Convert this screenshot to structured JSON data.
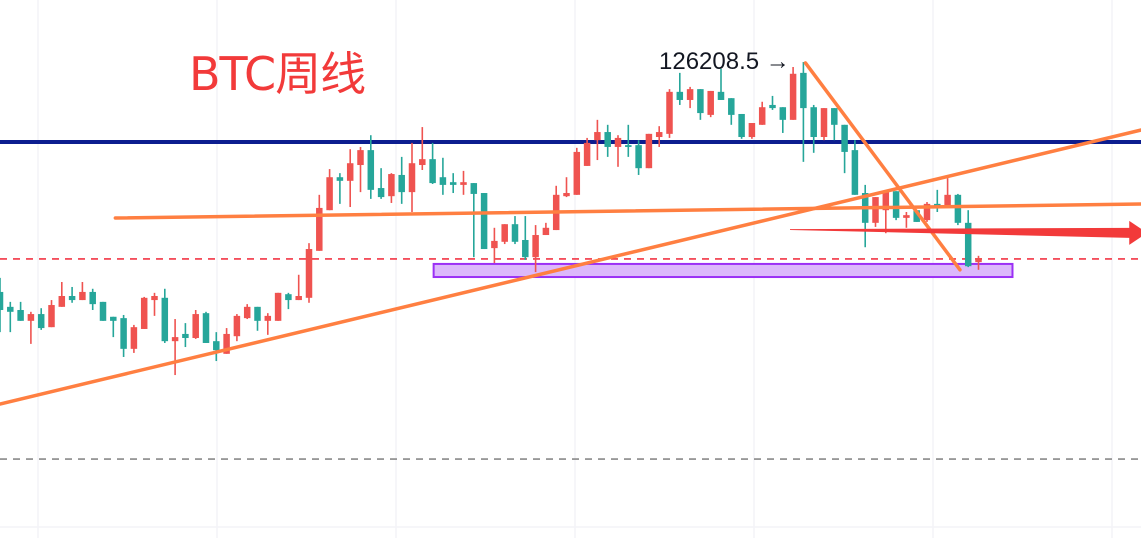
{
  "title": "BTC周线",
  "chart_data": {
    "type": "candlestick",
    "title": "BTC周线",
    "interval": "weekly",
    "symbol": "BTC",
    "colors": {
      "up": "#ef5350",
      "down": "#26a69a",
      "background": "#ffffff",
      "grid": "#f3f4f7"
    },
    "up_is_red": true,
    "grid": true,
    "ylim": [
      37500,
      140000
    ],
    "peak_annotation": {
      "text": "126208.5",
      "arrow": "→",
      "price": 126208.5,
      "candle_index": 78
    },
    "candles_ohlc": [
      [
        75300,
        78400,
        66400,
        71300
      ],
      [
        72000,
        73100,
        66400,
        70900
      ],
      [
        71300,
        73100,
        68900,
        68900
      ],
      [
        68900,
        70900,
        63800,
        70400
      ],
      [
        70400,
        71700,
        66900,
        67300
      ],
      [
        67500,
        73500,
        67500,
        72400
      ],
      [
        72000,
        77500,
        72000,
        74400
      ],
      [
        74400,
        76400,
        72900,
        73500
      ],
      [
        73500,
        77500,
        73500,
        75300
      ],
      [
        75300,
        76000,
        71300,
        72600
      ],
      [
        73100,
        73100,
        68900,
        68900
      ],
      [
        69800,
        69800,
        65300,
        68900
      ],
      [
        69500,
        70200,
        60900,
        62700
      ],
      [
        62700,
        68000,
        61800,
        67500
      ],
      [
        67100,
        74200,
        67100,
        74000
      ],
      [
        73500,
        75100,
        70000,
        74400
      ],
      [
        74000,
        76000,
        64000,
        64400
      ],
      [
        64400,
        69300,
        56900,
        65300
      ],
      [
        66000,
        68400,
        63100,
        65100
      ],
      [
        65100,
        71300,
        64900,
        70400
      ],
      [
        70600,
        70900,
        64000,
        64000
      ],
      [
        64400,
        66400,
        60000,
        62400
      ],
      [
        61600,
        67300,
        61600,
        66000
      ],
      [
        65500,
        70400,
        64400,
        70000
      ],
      [
        69500,
        72600,
        69300,
        72000
      ],
      [
        72000,
        72000,
        66700,
        68900
      ],
      [
        68900,
        70600,
        65800,
        70000
      ],
      [
        68900,
        75100,
        68900,
        75100
      ],
      [
        74800,
        75100,
        71500,
        73500
      ],
      [
        73500,
        79100,
        73500,
        74400
      ],
      [
        74000,
        86100,
        72900,
        84800
      ],
      [
        84400,
        96800,
        84400,
        93900
      ],
      [
        93400,
        102500,
        93400,
        100700
      ],
      [
        100700,
        101600,
        94800,
        99900
      ],
      [
        99900,
        106900,
        94100,
        103800
      ],
      [
        103400,
        107400,
        97400,
        106700
      ],
      [
        106700,
        110000,
        95900,
        97900
      ],
      [
        98300,
        102700,
        95900,
        96300
      ],
      [
        96500,
        101600,
        95000,
        101400
      ],
      [
        101200,
        105200,
        94800,
        97400
      ],
      [
        97400,
        108300,
        93000,
        103800
      ],
      [
        103400,
        111800,
        102300,
        104700
      ],
      [
        104700,
        108300,
        99200,
        99400
      ],
      [
        100700,
        105000,
        96800,
        99000
      ],
      [
        99600,
        101600,
        97200,
        99000
      ],
      [
        99000,
        102100,
        96800,
        99600
      ],
      [
        99400,
        99400,
        83000,
        97000
      ],
      [
        97200,
        97200,
        84800,
        84800
      ],
      [
        85000,
        89500,
        81700,
        86600
      ],
      [
        86400,
        90300,
        85900,
        90300
      ],
      [
        90300,
        92100,
        85900,
        86400
      ],
      [
        86800,
        92100,
        82400,
        83000
      ],
      [
        83000,
        90100,
        79700,
        87900
      ],
      [
        87900,
        90600,
        87900,
        89500
      ],
      [
        89000,
        98800,
        89000,
        96800
      ],
      [
        96500,
        100700,
        96300,
        97200
      ],
      [
        96800,
        107200,
        96800,
        106300
      ],
      [
        103200,
        109400,
        103200,
        108300
      ],
      [
        108900,
        113400,
        104500,
        110700
      ],
      [
        110700,
        112300,
        105200,
        107400
      ],
      [
        107400,
        110000,
        103000,
        109400
      ],
      [
        107800,
        112300,
        105200,
        107400
      ],
      [
        107800,
        108900,
        101200,
        102700
      ],
      [
        102700,
        110300,
        102700,
        110300
      ],
      [
        109600,
        112000,
        107400,
        110700
      ],
      [
        110300,
        120200,
        109400,
        119600
      ],
      [
        119600,
        123800,
        116700,
        117800
      ],
      [
        117800,
        120700,
        116000,
        120200
      ],
      [
        120200,
        120200,
        113400,
        114900
      ],
      [
        114500,
        119800,
        114000,
        119800
      ],
      [
        119600,
        124700,
        117800,
        117800
      ],
      [
        118200,
        118200,
        112300,
        114500
      ],
      [
        114700,
        114700,
        109200,
        109600
      ],
      [
        109600,
        112700,
        109200,
        112700
      ],
      [
        112300,
        117400,
        112300,
        116200
      ],
      [
        116700,
        118700,
        115600,
        116000
      ],
      [
        116200,
        116200,
        110500,
        113400
      ],
      [
        113400,
        125100,
        113400,
        123600
      ],
      [
        123800,
        126208.5,
        104100,
        116000
      ],
      [
        116200,
        116700,
        106100,
        109600
      ],
      [
        109600,
        116000,
        108900,
        116000
      ],
      [
        116000,
        116000,
        108900,
        112300
      ],
      [
        112300,
        112300,
        101600,
        106300
      ],
      [
        106700,
        108900,
        96800,
        96800
      ],
      [
        97200,
        99000,
        85200,
        90600
      ],
      [
        90600,
        96300,
        89700,
        96300
      ],
      [
        93400,
        97400,
        88300,
        97400
      ],
      [
        97600,
        97600,
        91200,
        91700
      ],
      [
        91700,
        93000,
        89500,
        92300
      ],
      [
        93400,
        93400,
        90800,
        90800
      ],
      [
        91200,
        95200,
        90800,
        94800
      ],
      [
        94800,
        97900,
        93000,
        94300
      ],
      [
        94500,
        100500,
        94500,
        96800
      ],
      [
        96800,
        97000,
        90100,
        90600
      ],
      [
        90600,
        93400,
        80800,
        81000
      ],
      [
        81900,
        83300,
        80200,
        82800
      ]
    ],
    "horizontal_lines": [
      {
        "name": "resistance",
        "price": 108500,
        "color": "#0c1d8f",
        "style": "solid"
      },
      {
        "name": "support-dashed",
        "price": 82600,
        "color": "#f23645",
        "style": "dashed"
      },
      {
        "name": "lower-dashed",
        "price": 38300,
        "color": "#8a8a8a",
        "style": "dashed"
      }
    ],
    "trend_lines": [
      {
        "name": "flat-trendline",
        "from": [
          11.2,
          91670
        ],
        "to": [
          110.8,
          94770
        ],
        "color": "#ff7f41"
      },
      {
        "name": "rising-trendline",
        "from": [
          0,
          50490
        ],
        "to": [
          110.8,
          111150
        ],
        "color": "#ff7f41"
      },
      {
        "name": "falling-trendline",
        "from": [
          78.2,
          126000
        ],
        "to": [
          93.2,
          80200
        ],
        "color": "#ff7f41"
      }
    ],
    "arrow": {
      "name": "projection-arrow",
      "from": [
        76.7,
        89200
      ],
      "to": [
        110.8,
        88350
      ],
      "color": "#f23a3a"
    },
    "zone": {
      "name": "support-zone",
      "from_index": 42.1,
      "to_index": 98.3,
      "price_top": 81500,
      "price_bottom": 78600,
      "fill": "#dcb8fb",
      "stroke": "#9b30f5"
    }
  }
}
